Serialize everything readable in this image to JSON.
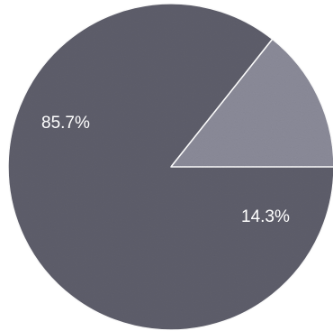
{
  "chart_data": {
    "type": "pie",
    "slices": [
      {
        "label": "85.7%",
        "value": 85.7,
        "color": "#5e5e6b"
      },
      {
        "label": "14.3%",
        "value": 14.3,
        "color": "#8b8b99"
      }
    ],
    "separator_color": "#ffffff"
  }
}
